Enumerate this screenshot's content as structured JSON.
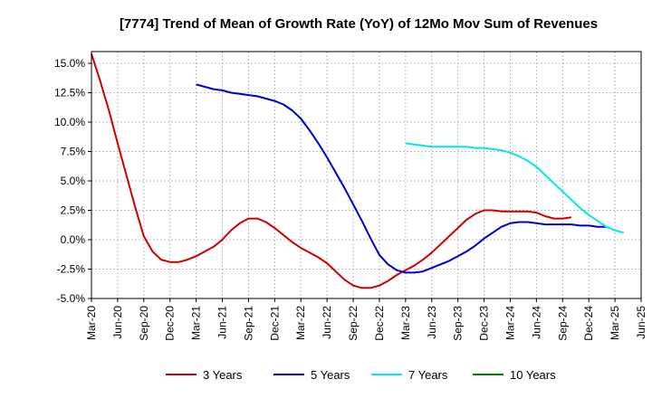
{
  "chart_data": {
    "type": "line",
    "title": "[7774]  Trend of Mean of Growth Rate (YoY) of 12Mo Mov Sum of Revenues",
    "xlabel": "",
    "ylabel": "",
    "ylim": [
      -5.0,
      16.0
    ],
    "y_ticks": [
      15.0,
      12.5,
      10.0,
      7.5,
      5.0,
      2.5,
      0.0,
      -2.5,
      -5.0
    ],
    "y_tick_labels": [
      "15.0%",
      "12.5%",
      "10.0%",
      "7.5%",
      "5.0%",
      "2.5%",
      "0.0%",
      "-2.5%",
      "-5.0%"
    ],
    "x_tick_labels": [
      "Mar-20",
      "Jun-20",
      "Sep-20",
      "Dec-20",
      "Mar-21",
      "Jun-21",
      "Sep-21",
      "Dec-21",
      "Mar-22",
      "Jun-22",
      "Sep-22",
      "Dec-22",
      "Mar-23",
      "Jun-23",
      "Sep-23",
      "Dec-23",
      "Mar-24",
      "Jun-24",
      "Sep-24",
      "Dec-24",
      "Mar-25",
      "Jun-25"
    ],
    "grid": true,
    "legend_position": "bottom",
    "series": [
      {
        "name": "3 Years",
        "color": "#cc0000",
        "start_index": 0,
        "values": [
          15.8,
          13.5,
          11.0,
          8.2,
          5.5,
          2.8,
          0.3,
          -1.0,
          -1.7,
          -1.9,
          -1.9,
          -1.7,
          -1.4,
          -1.0,
          -0.6,
          0.0,
          0.8,
          1.4,
          1.8,
          1.8,
          1.5,
          1.0,
          0.4,
          -0.2,
          -0.7,
          -1.1,
          -1.5,
          -2.0,
          -2.7,
          -3.4,
          -3.9,
          -4.1,
          -4.1,
          -3.9,
          -3.5,
          -3.0,
          -2.6,
          -2.2,
          -1.7,
          -1.1,
          -0.4,
          0.3,
          1.0,
          1.7,
          2.2,
          2.5,
          2.5,
          2.4,
          2.4,
          2.4,
          2.4,
          2.3,
          2.0,
          1.8,
          1.8,
          1.9
        ]
      },
      {
        "name": "5 Years",
        "color": "#0000cc",
        "start_index": 12,
        "values": [
          13.2,
          13.0,
          12.8,
          12.7,
          12.5,
          12.4,
          12.3,
          12.2,
          12.0,
          11.8,
          11.5,
          11.0,
          10.3,
          9.3,
          8.2,
          7.0,
          5.7,
          4.4,
          3.0,
          1.6,
          0.1,
          -1.3,
          -2.1,
          -2.6,
          -2.8,
          -2.8,
          -2.7,
          -2.4,
          -2.1,
          -1.8,
          -1.4,
          -1.0,
          -0.5,
          0.1,
          0.6,
          1.1,
          1.4,
          1.5,
          1.5,
          1.4,
          1.3,
          1.3,
          1.3,
          1.3,
          1.2,
          1.2,
          1.1,
          1.1
        ]
      },
      {
        "name": "7 Years",
        "color": "#00e5ee",
        "start_index": 36,
        "values": [
          8.2,
          8.1,
          8.0,
          7.9,
          7.9,
          7.9,
          7.9,
          7.9,
          7.8,
          7.8,
          7.7,
          7.6,
          7.4,
          7.1,
          6.7,
          6.2,
          5.5,
          4.8,
          4.1,
          3.4,
          2.7,
          2.1,
          1.6,
          1.1,
          0.8,
          0.6
        ]
      },
      {
        "name": "10 Years",
        "color": "#008000",
        "start_index": 0,
        "values": []
      }
    ]
  }
}
